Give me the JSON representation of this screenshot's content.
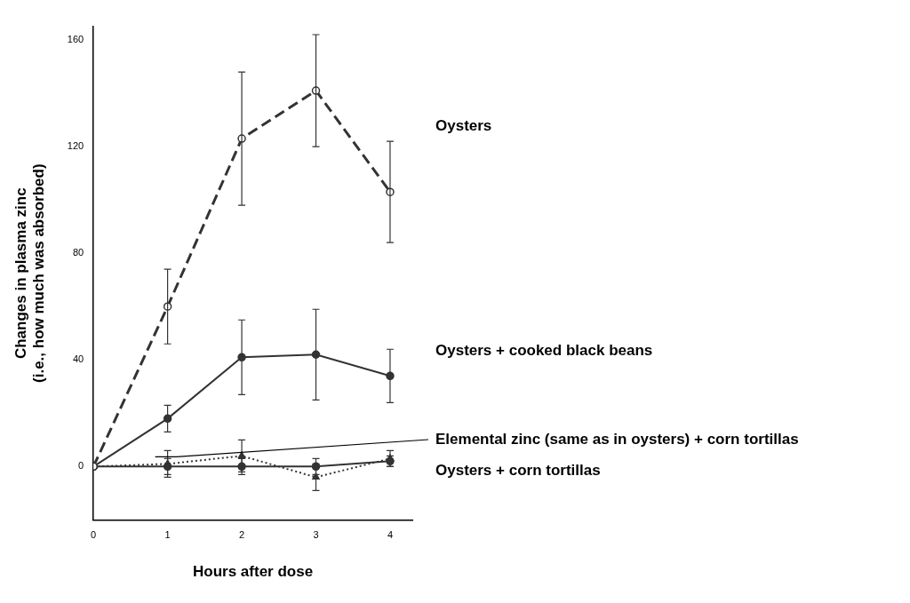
{
  "chart_data": {
    "type": "line",
    "xlabel": "Hours after dose",
    "ylabel": [
      "Changes in plasma zinc",
      "(i.e., how much was absorbed)"
    ],
    "x": [
      0,
      1,
      2,
      3,
      4
    ],
    "xlim": [
      0,
      4.3
    ],
    "xticks": [
      0,
      1,
      2,
      3,
      4
    ],
    "ylim": [
      -20,
      165
    ],
    "yticks": [
      0,
      40,
      80,
      120,
      160
    ],
    "grid": false,
    "series": [
      {
        "name": "Oysters",
        "color": "#333333",
        "line_style": "dashed",
        "marker": "open_circle",
        "values": [
          0,
          60,
          123,
          141,
          103
        ],
        "errors": [
          0,
          14,
          25,
          21,
          19
        ]
      },
      {
        "name": "Oysters + cooked black beans",
        "color": "#333333",
        "line_style": "solid",
        "marker": "circle",
        "values": [
          0,
          18,
          41,
          42,
          34
        ],
        "errors": [
          0,
          5,
          14,
          17,
          10
        ]
      },
      {
        "name": "Elemental zinc (same as in oysters) + corn tortillas",
        "color": "#333333",
        "line_style": "dotted",
        "marker": "triangle",
        "values": [
          0,
          1,
          4,
          -4,
          3
        ],
        "errors": [
          0,
          5,
          6,
          5,
          3
        ]
      },
      {
        "name": "Oysters + corn tortillas",
        "color": "#333333",
        "line_style": "solid",
        "marker": "circle",
        "values": [
          0,
          0,
          0,
          0,
          2
        ],
        "errors": [
          0,
          3,
          3,
          3,
          2
        ]
      }
    ]
  }
}
